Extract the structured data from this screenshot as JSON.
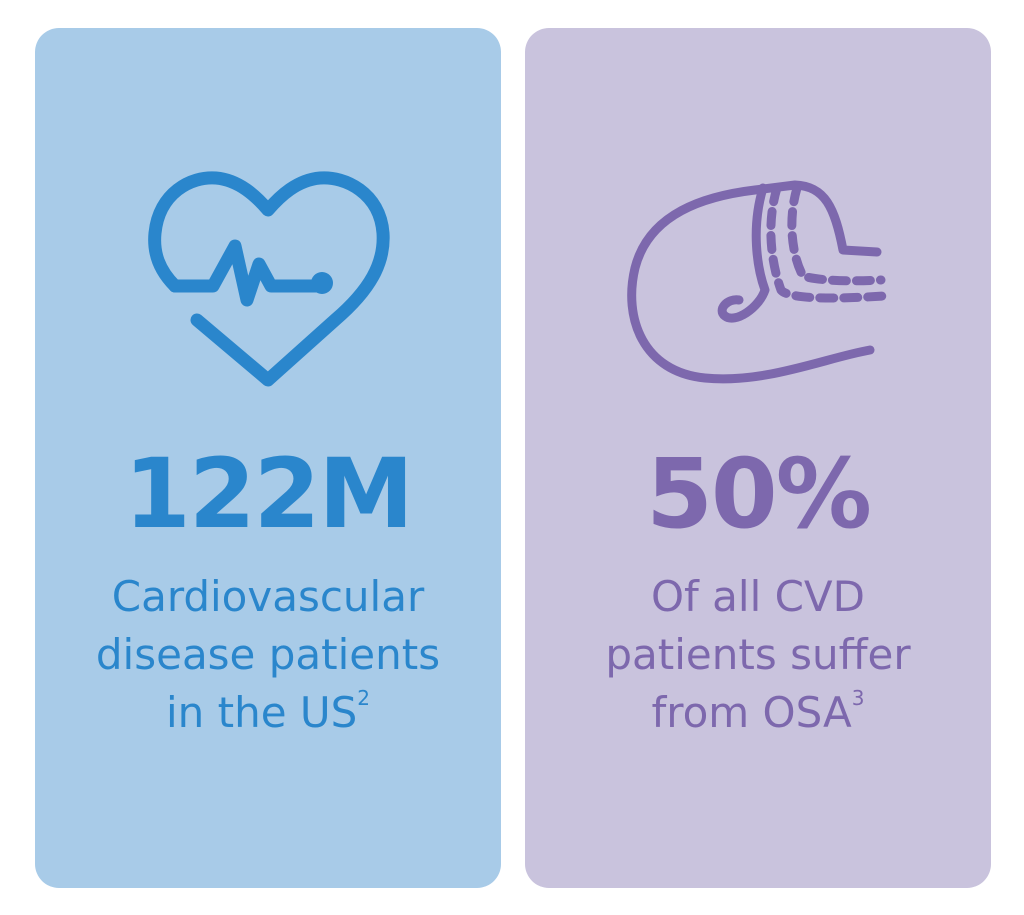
{
  "cards": [
    {
      "stat": "122M",
      "lines": [
        "Cardiovascular",
        "disease patients",
        "in the US"
      ],
      "sup": "2"
    },
    {
      "stat": "50%",
      "lines": [
        "Of all CVD",
        "patients suffer",
        "from OSA"
      ],
      "sup": "3"
    }
  ]
}
